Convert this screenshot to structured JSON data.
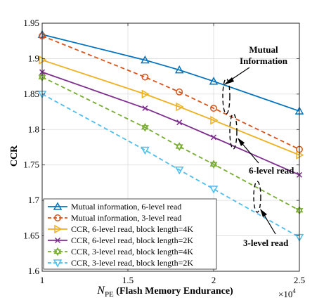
{
  "chart_data": {
    "type": "line",
    "xlabel_main": "N",
    "xlabel_sub": "PE",
    "xlabel_rest": " (Flash Memory Endurance)",
    "ylabel": "CCR",
    "x_multiplier": "×10",
    "x_multiplier_exp": "4",
    "xlim": [
      1,
      2.5
    ],
    "ylim": [
      1.6,
      1.95
    ],
    "x_ticks": [
      1,
      1.5,
      2,
      2.5
    ],
    "x_tick_labels": [
      "1",
      "1.5",
      "2",
      "2.5"
    ],
    "y_ticks": [
      1.6,
      1.65,
      1.7,
      1.75,
      1.8,
      1.85,
      1.9,
      1.95
    ],
    "y_tick_labels": [
      "1.6",
      "1.65",
      "1.7",
      "1.75",
      "1.8",
      "1.85",
      "1.9",
      "1.95"
    ],
    "grid": true,
    "legend_position": "bottom-left",
    "series": [
      {
        "name": "Mutual information, 6-level read",
        "color": "#0072BD",
        "dash": "solid",
        "marker": "triangle-up",
        "x": [
          1,
          1.6,
          1.8,
          2,
          2.5
        ],
        "y": [
          1.934,
          1.898,
          1.884,
          1.868,
          1.826
        ]
      },
      {
        "name": "Mutual information, 3-level read",
        "color": "#D95319",
        "dash": "dashed",
        "marker": "circle",
        "x": [
          1,
          1.6,
          1.8,
          2,
          2.5
        ],
        "y": [
          1.932,
          1.874,
          1.853,
          1.83,
          1.772
        ]
      },
      {
        "name": "CCR, 6-level read, block length=4K",
        "color": "#EDB120",
        "dash": "solid",
        "marker": "triangle-right",
        "x": [
          1,
          1.6,
          1.8,
          2,
          2.5
        ],
        "y": [
          1.898,
          1.85,
          1.832,
          1.813,
          1.764
        ]
      },
      {
        "name": "CCR, 6-level read, block length=2K",
        "color": "#7E2F8E",
        "dash": "solid",
        "marker": "x",
        "x": [
          1,
          1.6,
          1.8,
          2,
          2.5
        ],
        "y": [
          1.881,
          1.83,
          1.81,
          1.789,
          1.736
        ]
      },
      {
        "name": "CCR, 3-level read, block length=4K",
        "color": "#77AC30",
        "dash": "dashed",
        "marker": "hexagram",
        "x": [
          1,
          1.6,
          1.8,
          2,
          2.5
        ],
        "y": [
          1.874,
          1.803,
          1.776,
          1.751,
          1.686
        ]
      },
      {
        "name": "CCR, 3-level read, block length=2K",
        "color": "#4DBEEE",
        "dash": "dashed",
        "marker": "triangle-down",
        "x": [
          1,
          1.6,
          1.8,
          2,
          2.5
        ],
        "y": [
          1.85,
          1.771,
          1.743,
          1.716,
          1.648
        ]
      }
    ],
    "annotations": [
      {
        "lines": [
          "Mutual",
          "Information"
        ]
      },
      {
        "lines": [
          "6-level read"
        ]
      },
      {
        "lines": [
          "3-level read"
        ]
      }
    ]
  }
}
